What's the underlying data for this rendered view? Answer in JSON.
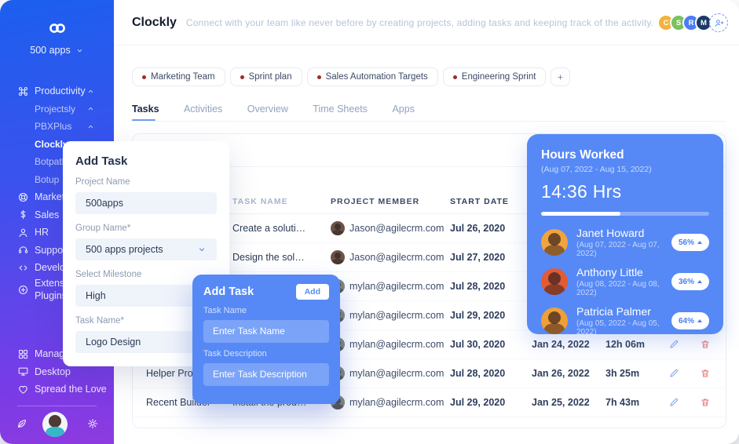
{
  "app": {
    "title": "Clockly",
    "description": "Connect with your team like never before by creating projects, adding tasks and keeping track of the activity."
  },
  "topbar": {
    "avatars": [
      {
        "label": "C",
        "color": "#F2B33D"
      },
      {
        "label": "S",
        "color": "#7CC15E"
      },
      {
        "label": "R",
        "color": "#4C7CF6"
      },
      {
        "label": "M",
        "color": "#1C3A66"
      }
    ]
  },
  "sidebar": {
    "workspace": "500 apps",
    "items": [
      {
        "icon": "command",
        "label": "Productivity",
        "cls": "parent has-chev"
      },
      {
        "label": "Projectsly",
        "cls": "child"
      },
      {
        "label": "PBXPlus",
        "cls": "child"
      },
      {
        "label": "Clockly",
        "cls": "child active"
      },
      {
        "label": "Botpath",
        "cls": "child"
      },
      {
        "label": "Botup",
        "cls": "child"
      },
      {
        "icon": "lifebuoy",
        "label": "Marketing",
        "cls": "parent"
      },
      {
        "icon": "dollar",
        "label": "Sales",
        "cls": "parent"
      },
      {
        "icon": "user",
        "label": "HR",
        "cls": "parent"
      },
      {
        "icon": "headset",
        "label": "Support",
        "cls": "parent"
      },
      {
        "icon": "code",
        "label": "Develop",
        "cls": "parent"
      },
      {
        "icon": "plugin",
        "label": "Extensions Plugins",
        "cls": "parent two-line"
      }
    ],
    "footer_items": [
      {
        "icon": "grid",
        "label": "Manage",
        "cls": "parent"
      },
      {
        "icon": "monitor",
        "label": "Desktop",
        "cls": "parent"
      },
      {
        "icon": "heart",
        "label": "Spread the Love",
        "cls": "parent"
      }
    ]
  },
  "chips": [
    {
      "label": "Marketing Team"
    },
    {
      "label": "Sprint plan"
    },
    {
      "label": "Sales Automation Targets"
    },
    {
      "label": "Engineering Sprint"
    }
  ],
  "tabs": [
    {
      "label": "Tasks",
      "cls": "active"
    },
    {
      "label": "Activities",
      "cls": ""
    },
    {
      "label": "Overview",
      "cls": ""
    },
    {
      "label": "Time Sheets",
      "cls": ""
    },
    {
      "label": "Apps",
      "cls": ""
    }
  ],
  "table": {
    "headers": {
      "project": "",
      "task": "TASK NAME",
      "member": "PROJECT MEMBER",
      "start": "START DATE",
      "end": "",
      "duration": "",
      "actions": ""
    },
    "rows": [
      {
        "project": "",
        "task": "Create a soluti…",
        "member": "Jason@agilecrm.com",
        "avatar_color": "#6B5148",
        "start": "Jul 26, 2020",
        "end": "",
        "duration": ""
      },
      {
        "project": "",
        "task": "Design the sol…",
        "member": "Jason@agilecrm.com",
        "avatar_color": "#6B5148",
        "start": "Jul 27, 2020",
        "end": "",
        "duration": ""
      },
      {
        "project": "",
        "task": "",
        "member": "mylan@agilecrm.com",
        "avatar_color": "#7E8678",
        "start": "Jul 28, 2020",
        "end": "",
        "duration": ""
      },
      {
        "project": "",
        "task": "",
        "member": "mylan@agilecrm.com",
        "avatar_color": "#7E8678",
        "start": "Jul 29, 2020",
        "end": "",
        "duration": ""
      },
      {
        "project": "",
        "task": "",
        "member": "mylan@agilecrm.com",
        "avatar_color": "#7E8678",
        "start": "Jul 30, 2020",
        "end": "Jan 24, 2022",
        "duration": "12h 06m"
      },
      {
        "project": "Helper Pro",
        "task": "",
        "member": "mylan@agilecrm.com",
        "avatar_color": "#7E8678",
        "start": "Jul 28, 2020",
        "end": "Jan 26, 2022",
        "duration": "3h 25m"
      },
      {
        "project": "Recent Builder",
        "task": "Install the prod…",
        "member": "mylan@agilecrm.com",
        "avatar_color": "#7E8678",
        "start": "Jul 29, 2020",
        "end": "Jan 25, 2022",
        "duration": "7h 43m"
      }
    ]
  },
  "add_task_panel": {
    "title": "Add Task",
    "fields": [
      {
        "label": "Project Name",
        "value": "500apps",
        "cls": ""
      },
      {
        "label": "Group Name*",
        "value": "500 apps projects",
        "cls": "select"
      },
      {
        "label": "Select Milestone",
        "value": "High",
        "cls": ""
      },
      {
        "label": "Task Name*",
        "value": "Logo Design",
        "cls": ""
      }
    ]
  },
  "quick_add_modal": {
    "title": "Add Task",
    "button": "Add",
    "fields": [
      {
        "label": "Task Name",
        "placeholder": "Enter Task Name"
      },
      {
        "label": "Task Description",
        "placeholder": "Enter Task Description"
      }
    ]
  },
  "hours_panel": {
    "title": "Hours Worked",
    "range": "(Aug 07, 2022 - Aug 15, 2022)",
    "total": "14:36 Hrs",
    "progress_pct": 47,
    "members": [
      {
        "name": "Janet Howard",
        "range": "(Aug 07, 2022 - Aug 07, 2022)",
        "pct": "56%",
        "avatar_color": "#F2A43C"
      },
      {
        "name": "Anthony Little",
        "range": "(Aug 08, 2022 - Aug 08, 2022)",
        "pct": "36%",
        "avatar_color": "#E25B33"
      },
      {
        "name": "Patricia Palmer",
        "range": "(Aug 05, 2022 - Aug 05, 2022)",
        "pct": "64%",
        "avatar_color": "#EF9F38"
      }
    ]
  }
}
